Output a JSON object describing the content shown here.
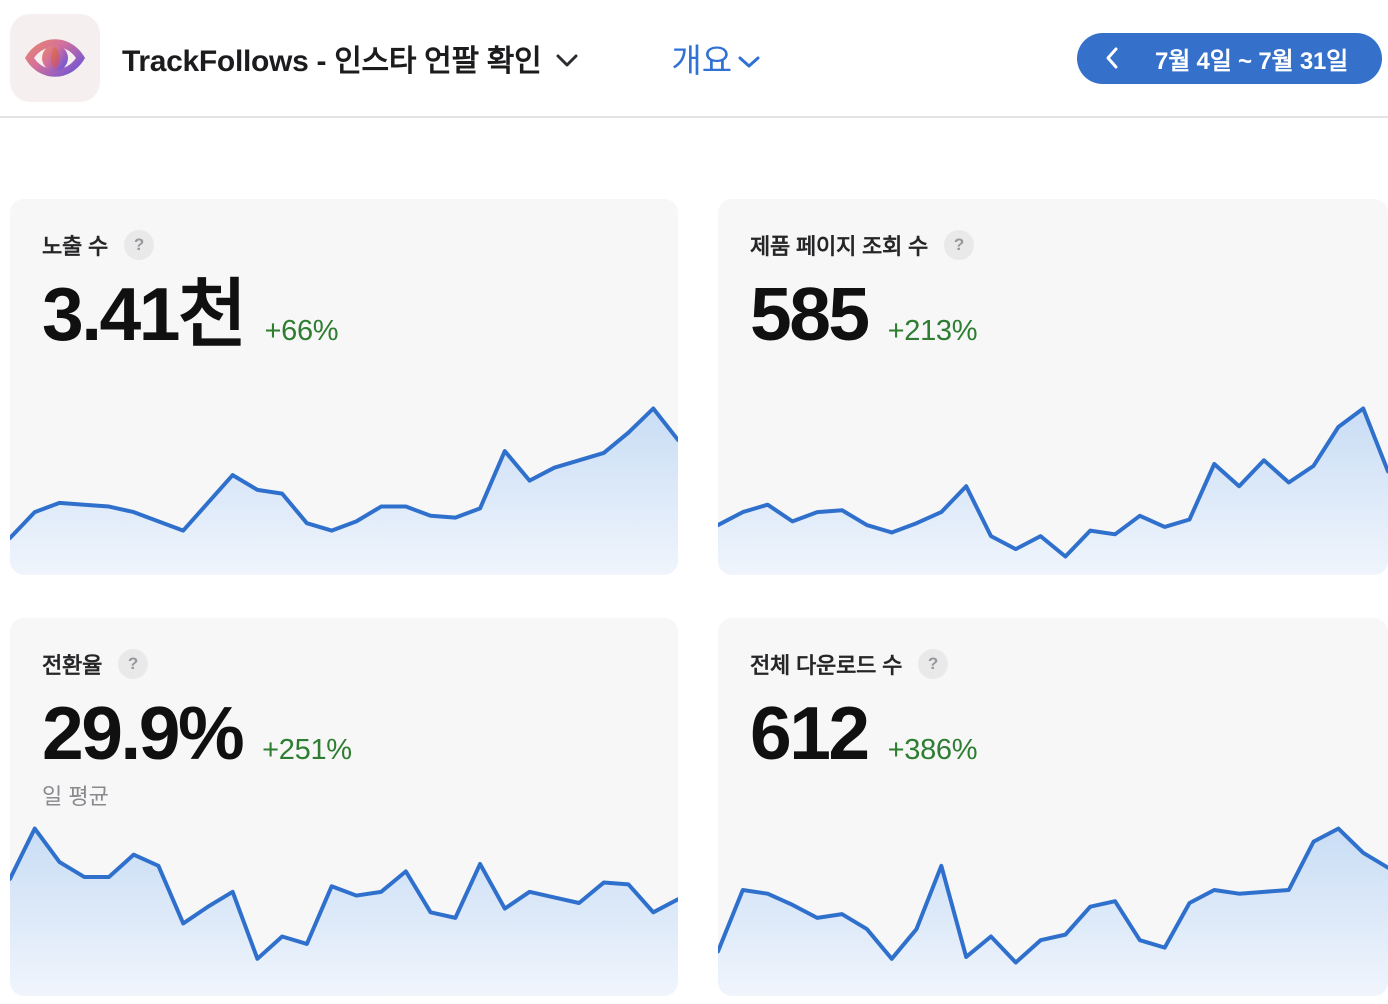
{
  "header": {
    "app_title": "TrackFollows - 인스타 언팔 확인",
    "section_selector_label": "개요",
    "date_range_label": "7월 4일 ~ 7월 31일"
  },
  "colors": {
    "accent_button_blue": "#3571ca",
    "link_blue": "#2f72d4",
    "delta_green": "#2e7d32",
    "chart_line_blue": "#3070cd",
    "chart_fill_top": "#c9ddf5",
    "chart_fill_bottom": "#f0f5fc",
    "card_background": "#f7f7f7"
  },
  "cards": [
    {
      "label": "노출 수",
      "help_icon": "?",
      "value": "3.41천",
      "delta": "+66%",
      "subtitle": ""
    },
    {
      "label": "제품 페이지 조회 수",
      "help_icon": "?",
      "value": "585",
      "delta": "+213%",
      "subtitle": ""
    },
    {
      "label": "전환율",
      "help_icon": "?",
      "value": "29.9%",
      "delta": "+251%",
      "subtitle": "일 평균"
    },
    {
      "label": "전체 다운로드 수",
      "help_icon": "?",
      "value": "612",
      "delta": "+386%",
      "subtitle": ""
    }
  ],
  "chart_data": [
    {
      "type": "line",
      "title": "노출 수",
      "date_range": "7월 4일 ~ 7월 31일",
      "xlabel": "",
      "ylabel": "",
      "axes_hidden": true,
      "grid": false,
      "legend": "none",
      "values_normalized_0_100": [
        20,
        34,
        39,
        38,
        37,
        34,
        29,
        24,
        39,
        54,
        46,
        44,
        28,
        24,
        29,
        37,
        37,
        32,
        31,
        36,
        67,
        51,
        58,
        62,
        66,
        77,
        90,
        73
      ]
    },
    {
      "type": "line",
      "title": "제품 페이지 조회 수",
      "date_range": "7월 4일 ~ 7월 31일",
      "xlabel": "",
      "ylabel": "",
      "axes_hidden": true,
      "grid": false,
      "legend": "none",
      "values_normalized_0_100": [
        27,
        34,
        38,
        29,
        34,
        35,
        27,
        23,
        28,
        34,
        48,
        21,
        14,
        21,
        10,
        24,
        22,
        32,
        26,
        30,
        60,
        48,
        62,
        50,
        59,
        80,
        90,
        56
      ]
    },
    {
      "type": "line",
      "title": "전환율",
      "date_range": "7월 4일 ~ 7월 31일",
      "xlabel": "",
      "ylabel": "",
      "axes_hidden": true,
      "grid": false,
      "legend": "none",
      "values_normalized_0_100": [
        63,
        90,
        72,
        64,
        64,
        76,
        70,
        39,
        48,
        56,
        20,
        32,
        28,
        59,
        54,
        56,
        67,
        45,
        42,
        71,
        47,
        56,
        53,
        50,
        61,
        60,
        45,
        52
      ]
    },
    {
      "type": "line",
      "title": "전체 다운로드 수",
      "date_range": "7월 4일 ~ 7월 31일",
      "xlabel": "",
      "ylabel": "",
      "axes_hidden": true,
      "grid": false,
      "legend": "none",
      "values_normalized_0_100": [
        24,
        57,
        55,
        49,
        42,
        44,
        36,
        20,
        36,
        70,
        21,
        32,
        18,
        30,
        33,
        48,
        51,
        30,
        26,
        50,
        57,
        55,
        56,
        57,
        83,
        90,
        77,
        69
      ]
    }
  ]
}
